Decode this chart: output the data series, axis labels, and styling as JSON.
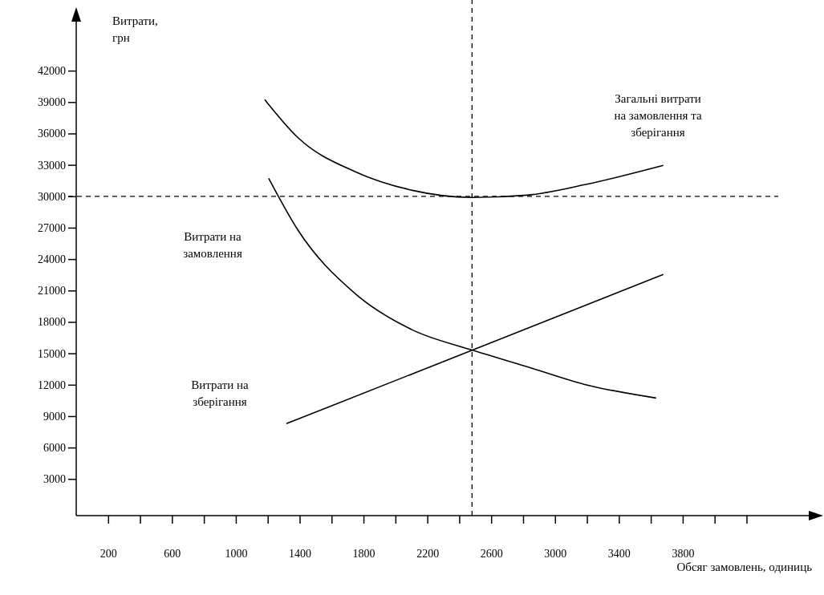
{
  "chart_data": {
    "type": "line",
    "xlabel": "Обсяг замовлень, одиниць",
    "ylabel": "Витрати,\nгрн",
    "xlim": [
      0,
      4650
    ],
    "ylim": [
      -500,
      47600
    ],
    "xticks": [
      200,
      {
        "value": 400,
        "label": null
      },
      600,
      {
        "value": 800,
        "label": null
      },
      1000,
      {
        "value": 1200,
        "label": null
      },
      1400,
      {
        "value": 1600,
        "label": null
      },
      1800,
      {
        "value": 2000,
        "label": null
      },
      2200,
      {
        "value": 2400,
        "label": null
      },
      2600,
      {
        "value": 2800,
        "label": null
      },
      3000,
      {
        "value": 3200,
        "label": null
      },
      3400,
      {
        "value": 3600,
        "label": null
      },
      3800,
      {
        "value": 4000,
        "label": null
      },
      {
        "value": 4200,
        "label": null
      }
    ],
    "yticks": [
      3000,
      6000,
      9000,
      12000,
      15000,
      18000,
      21000,
      24000,
      27000,
      30000,
      33000,
      36000,
      39000,
      42000
    ],
    "grid": false,
    "marker": "none",
    "series": [
      {
        "color": "#000000",
        "x": [
          1181,
          1387,
          1749,
          2106,
          2477,
          2824,
          3186,
          3678
        ],
        "values": [
          39230,
          35630,
          32340,
          30570,
          29890,
          30110,
          31110,
          32950
        ]
      },
      {
        "color": "#000000",
        "x": [
          1206,
          1387,
          1749,
          2106,
          2477,
          2824,
          3186,
          3633
        ],
        "values": [
          31720,
          26820,
          20690,
          17240,
          15330,
          13720,
          12030,
          10730
        ]
      },
      {
        "color": "#000000",
        "x": [
          1317,
          3678
        ],
        "values": [
          8280,
          22530
        ]
      }
    ],
    "ref_lines": [
      {
        "axis": "x",
        "value": 2480,
        "line_style": "dashed",
        "color": "#000000"
      },
      {
        "axis": "y",
        "value": 30000,
        "line_style": "dashed",
        "color": "#000000"
      }
    ],
    "annotations": [
      "Загальні витрати\nна замовлення та\nзберігання",
      "Витрати на\nзамовлення",
      "Витрати на\nзберігання"
    ]
  }
}
